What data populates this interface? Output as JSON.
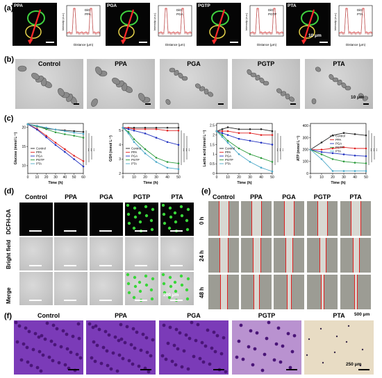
{
  "panel_labels": {
    "a": "(a)",
    "b": "(b)",
    "c": "(c)",
    "d": "(d)",
    "e": "(e)",
    "f": "(f)"
  },
  "groups": [
    "Control",
    "PPA",
    "PGA",
    "PGTP",
    "PTA"
  ],
  "panel_a": {
    "tiles": [
      "PPA",
      "PGA",
      "PGTP",
      "PTA"
    ],
    "legend_did": "DiD",
    "xlabel": "Distance (μm)",
    "ylabel": "Intensity (a.u.)",
    "scalebar": "10 μm"
  },
  "panel_b": {
    "scalebar": "10 μm"
  },
  "panel_c": {
    "xlabel": "Time (h)",
    "sig": "***",
    "legend": [
      "Control",
      "PPA",
      "PGA",
      "PGTP",
      "PTA"
    ],
    "colors": [
      "#222222",
      "#e02020",
      "#2030c0",
      "#2a9a3a",
      "#4aa8c8"
    ]
  },
  "panel_d": {
    "rows": [
      "DCFH-DA",
      "Bright field",
      "Merge"
    ],
    "scalebar": "200 μm"
  },
  "panel_e": {
    "rows": [
      "0 h",
      "24 h",
      "48 h"
    ],
    "scalebar": "500 μm"
  },
  "panel_f": {
    "scalebar": "250 μm"
  },
  "chart_data": [
    {
      "type": "line",
      "ylabel": "Glucose (mmol L⁻¹)",
      "xlabel": "Time (h)",
      "x": [
        0,
        10,
        20,
        30,
        40,
        50,
        60
      ],
      "xlim": [
        0,
        60
      ],
      "ylim": [
        8,
        21
      ],
      "yticks": [
        10,
        15,
        20
      ],
      "xticks": [
        0,
        10,
        20,
        30,
        40,
        50,
        60
      ],
      "series": [
        {
          "name": "Control",
          "values": [
            20.8,
            20.2,
            19.7,
            19.4,
            19.2,
            19.0,
            18.8
          ]
        },
        {
          "name": "PPA",
          "values": [
            20.8,
            19.6,
            17.8,
            16.0,
            14.3,
            12.6,
            11.2
          ]
        },
        {
          "name": "PGA",
          "values": [
            20.8,
            19.4,
            17.4,
            15.4,
            13.6,
            11.7,
            9.8
          ]
        },
        {
          "name": "PGTP",
          "values": [
            20.8,
            20.3,
            19.5,
            18.7,
            18.2,
            17.8,
            17.3
          ]
        },
        {
          "name": "PTA",
          "values": [
            20.8,
            20.4,
            19.9,
            19.4,
            19.0,
            18.6,
            18.3
          ]
        }
      ]
    },
    {
      "type": "line",
      "ylabel": "GSH (mmol L⁻¹)",
      "xlabel": "Time (h)",
      "x": [
        0,
        5,
        10,
        20,
        30,
        40,
        50
      ],
      "xlim": [
        0,
        50
      ],
      "ylim": [
        2,
        5.5
      ],
      "yticks": [
        2,
        3,
        4,
        5
      ],
      "xticks": [
        0,
        10,
        20,
        30,
        40,
        50
      ],
      "series": [
        {
          "name": "Control",
          "values": [
            5.2,
            5.2,
            5.2,
            5.2,
            5.2,
            5.2,
            5.2
          ]
        },
        {
          "name": "PPA",
          "values": [
            5.2,
            5.2,
            5.1,
            5.1,
            5.1,
            5.0,
            5.0
          ]
        },
        {
          "name": "PGA",
          "values": [
            5.2,
            5.1,
            5.0,
            4.8,
            4.5,
            4.2,
            4.0
          ]
        },
        {
          "name": "PGTP",
          "values": [
            5.2,
            4.9,
            4.4,
            3.7,
            3.1,
            2.8,
            2.7
          ]
        },
        {
          "name": "PTA",
          "values": [
            5.2,
            4.8,
            4.2,
            3.4,
            2.8,
            2.4,
            2.3
          ]
        }
      ]
    },
    {
      "type": "line",
      "ylabel": "Lactic acid (mmol L⁻¹)",
      "xlabel": "Time (h)",
      "x": [
        0,
        5,
        10,
        20,
        30,
        40,
        50
      ],
      "xlim": [
        0,
        50
      ],
      "ylim": [
        0,
        2.6
      ],
      "yticks": [
        0.0,
        0.5,
        1.0,
        1.5,
        2.0,
        2.5
      ],
      "xticks": [
        0,
        10,
        20,
        30,
        40,
        50
      ],
      "series": [
        {
          "name": "Control",
          "values": [
            2.2,
            2.3,
            2.4,
            2.3,
            2.3,
            2.3,
            2.2
          ]
        },
        {
          "name": "PPA",
          "values": [
            2.2,
            2.2,
            2.2,
            2.1,
            2.1,
            2.0,
            2.0
          ]
        },
        {
          "name": "PGA",
          "values": [
            2.2,
            2.1,
            2.0,
            1.8,
            1.7,
            1.6,
            1.5
          ]
        },
        {
          "name": "PGTP",
          "values": [
            2.2,
            2.0,
            1.7,
            1.3,
            1.0,
            0.8,
            0.6
          ]
        },
        {
          "name": "PTA",
          "values": [
            2.2,
            1.9,
            1.6,
            1.0,
            0.6,
            0.3,
            0.1
          ]
        }
      ]
    },
    {
      "type": "line",
      "ylabel": "ATP (mmol L⁻¹)",
      "xlabel": "Time (h)",
      "x": [
        0,
        10,
        20,
        30,
        40,
        50
      ],
      "xlim": [
        0,
        50
      ],
      "ylim": [
        0,
        420
      ],
      "yticks": [
        0,
        100,
        200,
        300,
        400
      ],
      "xticks": [
        0,
        10,
        20,
        30,
        40,
        50
      ],
      "series": [
        {
          "name": "Control",
          "values": [
            200,
            260,
            320,
            340,
            330,
            320
          ]
        },
        {
          "name": "PPA",
          "values": [
            200,
            200,
            210,
            220,
            210,
            210
          ]
        },
        {
          "name": "PGA",
          "values": [
            200,
            180,
            170,
            160,
            150,
            145
          ]
        },
        {
          "name": "PGTP",
          "values": [
            200,
            160,
            120,
            100,
            90,
            85
          ]
        },
        {
          "name": "PTA",
          "values": [
            200,
            120,
            20,
            20,
            20,
            20
          ]
        }
      ]
    }
  ]
}
